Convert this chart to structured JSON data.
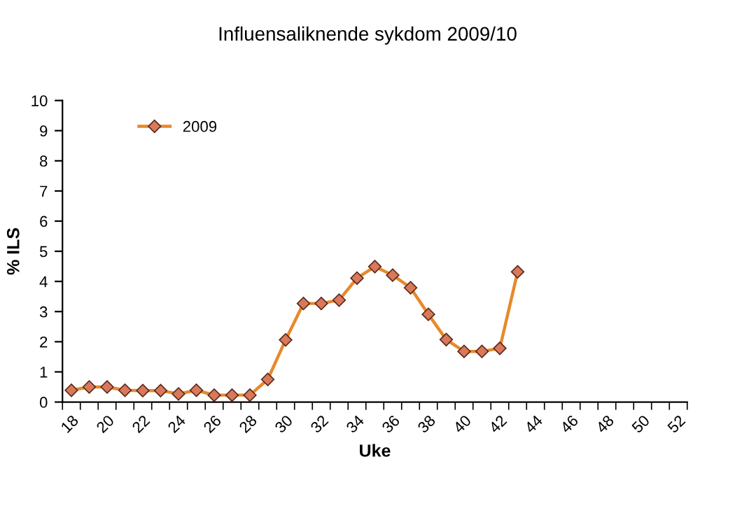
{
  "chart_data": {
    "type": "line",
    "title": "Influensaliknende sykdom 2009/10",
    "xlabel": "Uke",
    "ylabel": "% ILS",
    "categories": [
      "18",
      null,
      "20",
      null,
      "22",
      null,
      "24",
      null,
      "26",
      null,
      "28",
      null,
      "30",
      null,
      "32",
      null,
      "34",
      null,
      "36",
      null,
      "38",
      null,
      "40",
      null,
      "42",
      null,
      "44",
      null,
      "46",
      null,
      "48",
      null,
      "50",
      null,
      "52"
    ],
    "series": [
      {
        "name": "2009",
        "color": "#e8892a",
        "values": [
          0.39,
          0.5,
          0.5,
          0.39,
          0.38,
          0.38,
          0.27,
          0.39,
          0.23,
          0.23,
          0.23,
          0.75,
          2.06,
          3.27,
          3.27,
          3.38,
          4.11,
          4.49,
          4.21,
          3.79,
          2.91,
          2.07,
          1.68,
          1.68,
          1.78,
          4.32,
          null,
          null,
          null,
          null,
          null,
          null,
          null,
          null,
          null
        ]
      }
    ],
    "ylim": [
      0,
      10
    ],
    "yticks": [
      0,
      1,
      2,
      3,
      4,
      5,
      6,
      7,
      8,
      9,
      10
    ],
    "grid": false,
    "legend": "top left",
    "marker": "diamond",
    "line_style": "solid"
  }
}
